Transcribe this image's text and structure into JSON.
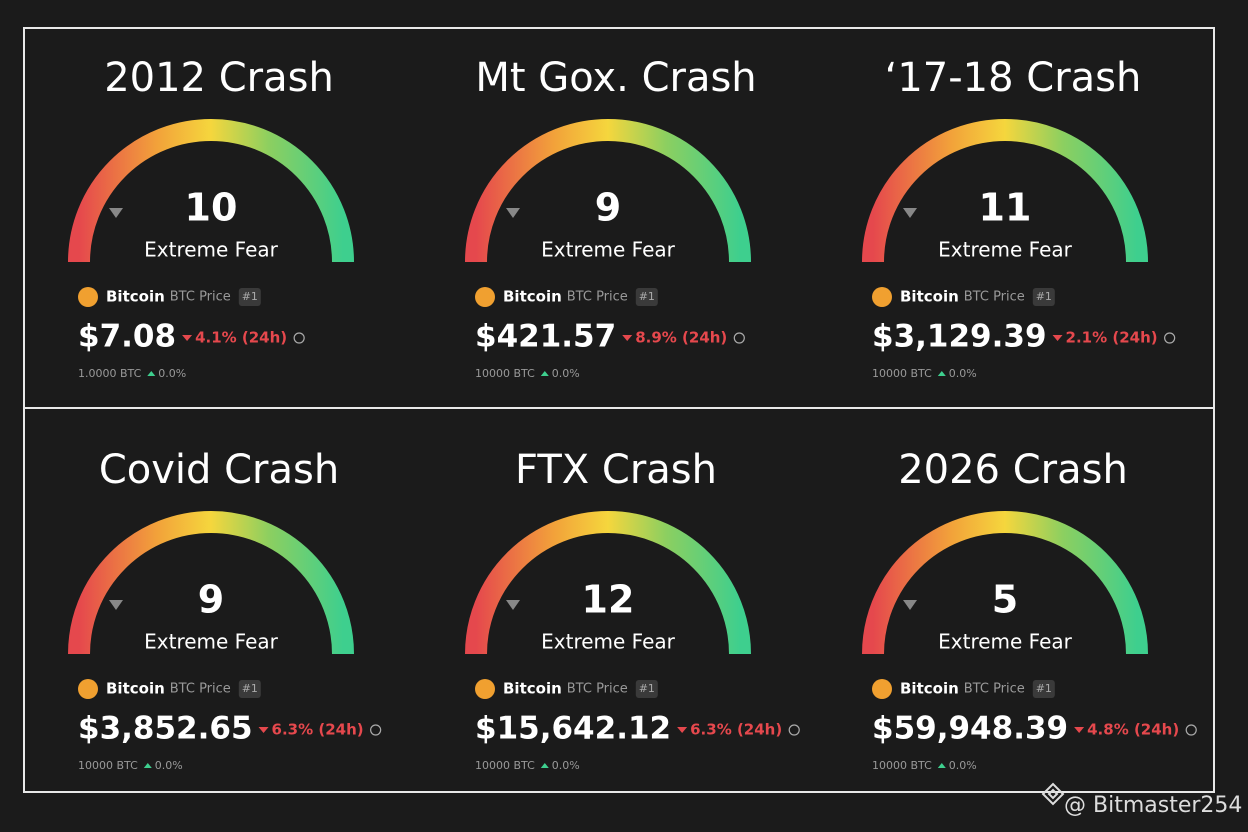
{
  "panels": [
    {
      "title": "2012 Crash",
      "value": "10",
      "label": "Extreme Fear",
      "coin": "Bitcoin",
      "price_label": "BTC Price",
      "rank": "#1",
      "price": "$7.08",
      "change": "4.1% (24h)",
      "holding": "1.0000 BTC",
      "holding_change": "0.0%"
    },
    {
      "title": "Mt Gox. Crash",
      "value": "9",
      "label": "Extreme Fear",
      "coin": "Bitcoin",
      "price_label": "BTC Price",
      "rank": "#1",
      "price": "$421.57",
      "change": "8.9% (24h)",
      "holding": "10000 BTC",
      "holding_change": "0.0%"
    },
    {
      "title": "‘17-18 Crash",
      "value": "11",
      "label": "Extreme Fear",
      "coin": "Bitcoin",
      "price_label": "BTC Price",
      "rank": "#1",
      "price": "$3,129.39",
      "change": "2.1% (24h)",
      "holding": "10000 BTC",
      "holding_change": "0.0%"
    },
    {
      "title": "Covid Crash",
      "value": "9",
      "label": "Extreme Fear",
      "coin": "Bitcoin",
      "price_label": "BTC Price",
      "rank": "#1",
      "price": "$3,852.65",
      "change": "6.3% (24h)",
      "holding": "10000 BTC",
      "holding_change": "0.0%"
    },
    {
      "title": "FTX Crash",
      "value": "12",
      "label": "Extreme Fear",
      "coin": "Bitcoin",
      "price_label": "BTC Price",
      "rank": "#1",
      "price": "$15,642.12",
      "change": "6.3% (24h)",
      "holding": "10000 BTC",
      "holding_change": "0.0%"
    },
    {
      "title": "2026 Crash",
      "value": "5",
      "label": "Extreme Fear",
      "coin": "Bitcoin",
      "price_label": "BTC Price",
      "rank": "#1",
      "price": "$59,948.39",
      "change": "4.8% (24h)",
      "holding": "10000 BTC",
      "holding_change": "0.0%"
    }
  ],
  "watermark": "@ Bitmaster254"
}
